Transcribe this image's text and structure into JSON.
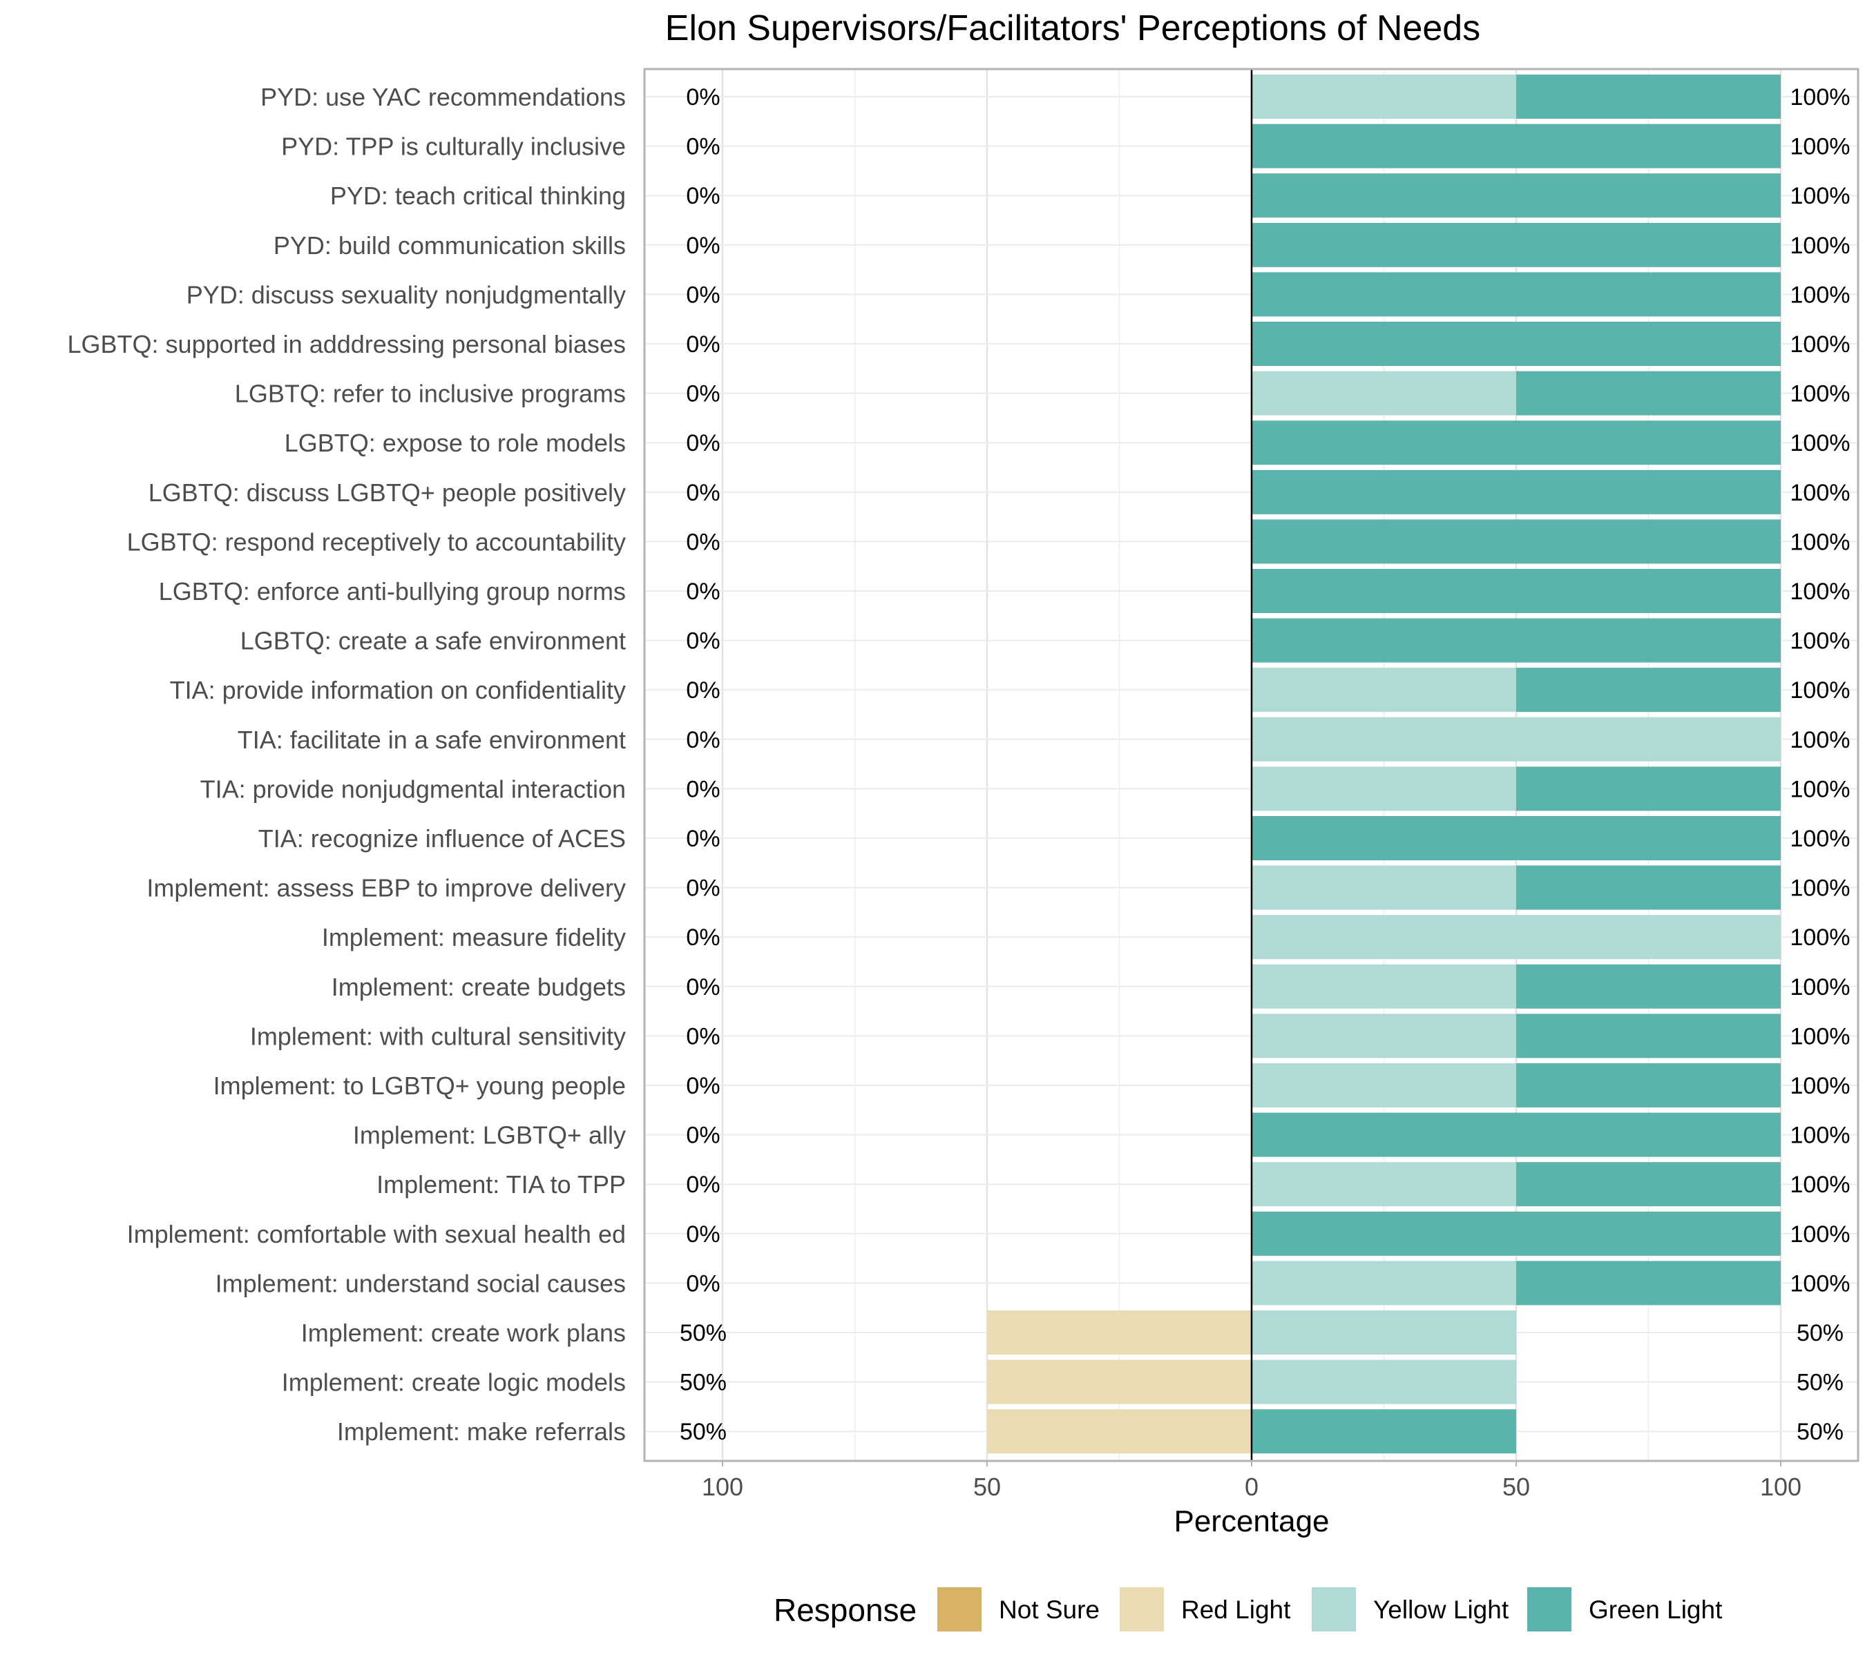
{
  "chart_data": {
    "type": "bar",
    "orientation": "horizontal-diverging",
    "title": "Elon Supervisors/Facilitators' Perceptions of Needs",
    "xlabel": "Percentage",
    "ylabel": "",
    "xlim": [
      -100,
      100
    ],
    "xticks": [
      {
        "value": -100,
        "label": "100"
      },
      {
        "value": -50,
        "label": "50"
      },
      {
        "value": 0,
        "label": "0"
      },
      {
        "value": 50,
        "label": "50"
      },
      {
        "value": 100,
        "label": "100"
      }
    ],
    "grid": true,
    "legend": {
      "title": "Response",
      "placement": "bottom",
      "entries": [
        {
          "name": "Not Sure",
          "color": "#d8b365"
        },
        {
          "name": "Red Light",
          "color": "#ebdbb2"
        },
        {
          "name": "Yellow Light",
          "color": "#b0dad5"
        },
        {
          "name": "Green Light",
          "color": "#5ab4ac"
        }
      ]
    },
    "categories": [
      "PYD: use YAC recommendations",
      "PYD: TPP is culturally inclusive",
      "PYD: teach critical thinking",
      "PYD: build communication skills",
      "PYD: discuss sexuality nonjudgmentally",
      "LGBTQ: supported in adddressing personal biases",
      "LGBTQ: refer to inclusive programs",
      "LGBTQ: expose to role models",
      "LGBTQ: discuss LGBTQ+ people positively",
      "LGBTQ: respond receptively to accountability",
      "LGBTQ: enforce anti-bullying group norms",
      "LGBTQ: create a safe environment",
      "TIA: provide information on confidentiality",
      "TIA: facilitate in a safe environment",
      "TIA: provide nonjudgmental interaction",
      "TIA: recognize influence of ACES",
      "Implement: assess EBP to improve delivery",
      "Implement: measure fidelity",
      "Implement: create budgets",
      "Implement: with cultural sensitivity",
      "Implement: to LGBTQ+ young people",
      "Implement: LGBTQ+ ally",
      "Implement: TIA to TPP",
      "Implement: comfortable with sexual health ed",
      "Implement: understand social causes",
      "Implement: create work plans",
      "Implement: create logic models",
      "Implement: make referrals"
    ],
    "series": [
      {
        "name": "Not Sure",
        "values": [
          0,
          0,
          0,
          0,
          0,
          0,
          0,
          0,
          0,
          0,
          0,
          0,
          0,
          0,
          0,
          0,
          0,
          0,
          0,
          0,
          0,
          0,
          0,
          0,
          0,
          0,
          0,
          0
        ]
      },
      {
        "name": "Red Light",
        "values": [
          0,
          0,
          0,
          0,
          0,
          0,
          0,
          0,
          0,
          0,
          0,
          0,
          0,
          0,
          0,
          0,
          0,
          0,
          0,
          0,
          0,
          0,
          0,
          0,
          0,
          50,
          50,
          50
        ]
      },
      {
        "name": "Yellow Light",
        "values": [
          50,
          0,
          0,
          0,
          0,
          0,
          50,
          0,
          0,
          0,
          0,
          0,
          50,
          100,
          50,
          0,
          50,
          100,
          50,
          50,
          50,
          0,
          50,
          0,
          50,
          50,
          50,
          0
        ]
      },
      {
        "name": "Green Light",
        "values": [
          50,
          100,
          100,
          100,
          100,
          100,
          50,
          100,
          100,
          100,
          100,
          100,
          50,
          0,
          50,
          100,
          50,
          0,
          50,
          50,
          50,
          100,
          50,
          100,
          50,
          0,
          0,
          50
        ]
      }
    ],
    "left_labels": [
      "0%",
      "0%",
      "0%",
      "0%",
      "0%",
      "0%",
      "0%",
      "0%",
      "0%",
      "0%",
      "0%",
      "0%",
      "0%",
      "0%",
      "0%",
      "0%",
      "0%",
      "0%",
      "0%",
      "0%",
      "0%",
      "0%",
      "0%",
      "0%",
      "0%",
      "50%",
      "50%",
      "50%"
    ],
    "right_labels": [
      "100%",
      "100%",
      "100%",
      "100%",
      "100%",
      "100%",
      "100%",
      "100%",
      "100%",
      "100%",
      "100%",
      "100%",
      "100%",
      "100%",
      "100%",
      "100%",
      "100%",
      "100%",
      "100%",
      "100%",
      "100%",
      "100%",
      "100%",
      "100%",
      "100%",
      "50%",
      "50%",
      "50%"
    ]
  }
}
